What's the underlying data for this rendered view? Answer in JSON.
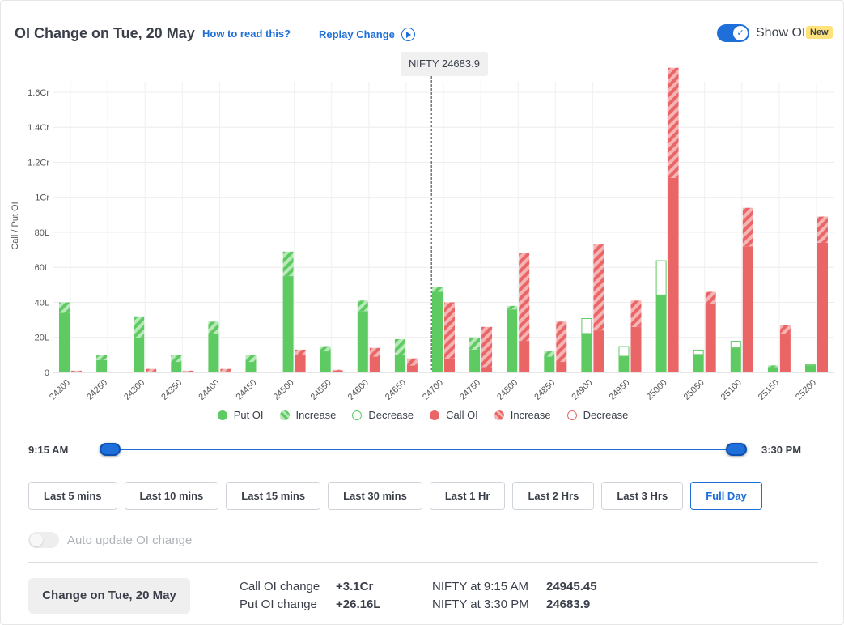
{
  "header": {
    "title": "OI Change on Tue, 20 May",
    "how_to_read": "How to read this?",
    "replay_change": "Replay Change",
    "show_oi_label": "Show OI",
    "new_badge": "New",
    "show_oi_enabled": true
  },
  "spot_marker": {
    "label": "NIFTY 24683.9",
    "value": 24683.9
  },
  "colors": {
    "put": "#5ecb62",
    "put_light": "#b9e9ba",
    "call": "#e96566",
    "call_light": "#f5b5b5",
    "accent": "#1e6fd9"
  },
  "chart_data": {
    "type": "bar",
    "ylabel": "Call / Put OI",
    "y_ticks": [
      "0",
      "20L",
      "40L",
      "60L",
      "80L",
      "1Cr",
      "1.2Cr",
      "1.4Cr",
      "1.6Cr"
    ],
    "y_unit_note": "values in lakhs",
    "ylim": [
      0,
      166
    ],
    "grid": true,
    "categories": [
      "24200",
      "24250",
      "24300",
      "24350",
      "24400",
      "24450",
      "24500",
      "24550",
      "24600",
      "24650",
      "24700",
      "24750",
      "24800",
      "24850",
      "24900",
      "24950",
      "25000",
      "25050",
      "25100",
      "25150",
      "25200"
    ],
    "series": [
      {
        "name": "Put OI",
        "start": [
          34,
          7,
          20,
          6,
          22,
          6,
          55,
          12,
          35,
          10,
          46,
          13,
          36,
          9,
          31,
          15,
          64,
          13,
          18,
          3,
          5
        ],
        "end": [
          40,
          10,
          32,
          10,
          29,
          10,
          69,
          15,
          41,
          19,
          49,
          20,
          38,
          12,
          22,
          9,
          44,
          10,
          14,
          4,
          4
        ]
      },
      {
        "name": "Call OI",
        "start": [
          0.5,
          0,
          0.5,
          0.3,
          0.5,
          0.1,
          10,
          1,
          9,
          4,
          8,
          3,
          18,
          6,
          24,
          26,
          111,
          39,
          72,
          22,
          74
        ],
        "end": [
          1,
          0,
          2,
          1,
          2,
          0.3,
          13,
          1.5,
          14,
          8,
          40,
          26,
          68,
          29,
          73,
          41,
          174,
          46,
          94,
          27,
          89
        ]
      }
    ],
    "legend": [
      "Put OI",
      "Increase",
      "Decrease",
      "Call OI",
      "Increase",
      "Decrease"
    ],
    "legend_position": "bottom"
  },
  "slider": {
    "start_label": "9:15 AM",
    "end_label": "3:30 PM"
  },
  "ranges": [
    {
      "label": "Last 5 mins",
      "active": false
    },
    {
      "label": "Last 10 mins",
      "active": false
    },
    {
      "label": "Last 15 mins",
      "active": false
    },
    {
      "label": "Last 30 mins",
      "active": false
    },
    {
      "label": "Last 1 Hr",
      "active": false
    },
    {
      "label": "Last 2 Hrs",
      "active": false
    },
    {
      "label": "Last 3 Hrs",
      "active": false
    },
    {
      "label": "Full Day",
      "active": true
    }
  ],
  "auto_update": {
    "label": "Auto update OI change",
    "enabled": false
  },
  "summary": {
    "change_button": "Change on Tue, 20 May",
    "call_oi_change_label": "Call OI change",
    "call_oi_change_value": "+3.1Cr",
    "put_oi_change_label": "Put OI change",
    "put_oi_change_value": "+26.16L",
    "nifty_start_label": "NIFTY at 9:15 AM",
    "nifty_start_value": "24945.45",
    "nifty_end_label": "NIFTY at 3:30 PM",
    "nifty_end_value": "24683.9"
  }
}
